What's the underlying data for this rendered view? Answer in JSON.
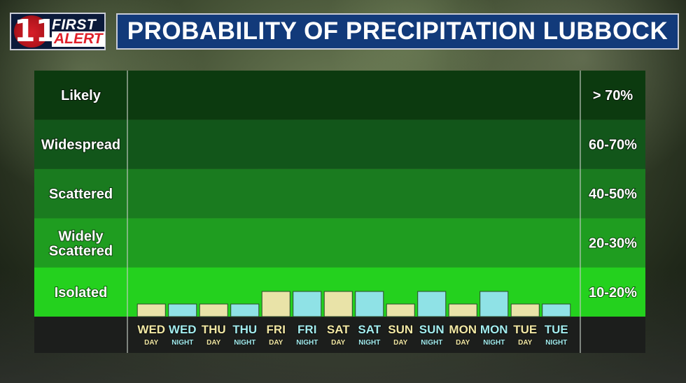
{
  "header": {
    "logo_number": "11",
    "logo_line1": "FIRST",
    "logo_line2": "ALERT",
    "title": "PROBABILITY OF PRECIPITATION LUBBOCK"
  },
  "chart_data": {
    "type": "bar",
    "categories": [
      {
        "label": "WED",
        "period": "DAY"
      },
      {
        "label": "WED",
        "period": "NIGHT"
      },
      {
        "label": "THU",
        "period": "DAY"
      },
      {
        "label": "THU",
        "period": "NIGHT"
      },
      {
        "label": "FRI",
        "period": "DAY"
      },
      {
        "label": "FRI",
        "period": "NIGHT"
      },
      {
        "label": "SAT",
        "period": "DAY"
      },
      {
        "label": "SAT",
        "period": "NIGHT"
      },
      {
        "label": "SUN",
        "period": "DAY"
      },
      {
        "label": "SUN",
        "period": "NIGHT"
      },
      {
        "label": "MON",
        "period": "DAY"
      },
      {
        "label": "MON",
        "period": "NIGHT"
      },
      {
        "label": "TUE",
        "period": "DAY"
      },
      {
        "label": "TUE",
        "period": "NIGHT"
      }
    ],
    "values": [
      5,
      5,
      5,
      5,
      10,
      10,
      10,
      10,
      5,
      10,
      5,
      10,
      5,
      5
    ],
    "ylim": [
      0,
      70
    ],
    "bands": [
      {
        "label": "Likely",
        "range": "> 70%",
        "color": "#0c3a0f"
      },
      {
        "label": "Widespread",
        "range": "60-70%",
        "color": "#12561a"
      },
      {
        "label": "Scattered",
        "range": "40-50%",
        "color": "#1a7b1f"
      },
      {
        "label": "Widely Scattered",
        "range": "20-30%",
        "color": "#1f9d20"
      },
      {
        "label": "Isolated",
        "range": "10-20%",
        "color": "#24d11e"
      }
    ],
    "colors": {
      "day": "#e9e3a8",
      "night": "#8fe2e6",
      "label_day": "#f2e8a4",
      "label_night": "#a2ecee"
    }
  }
}
